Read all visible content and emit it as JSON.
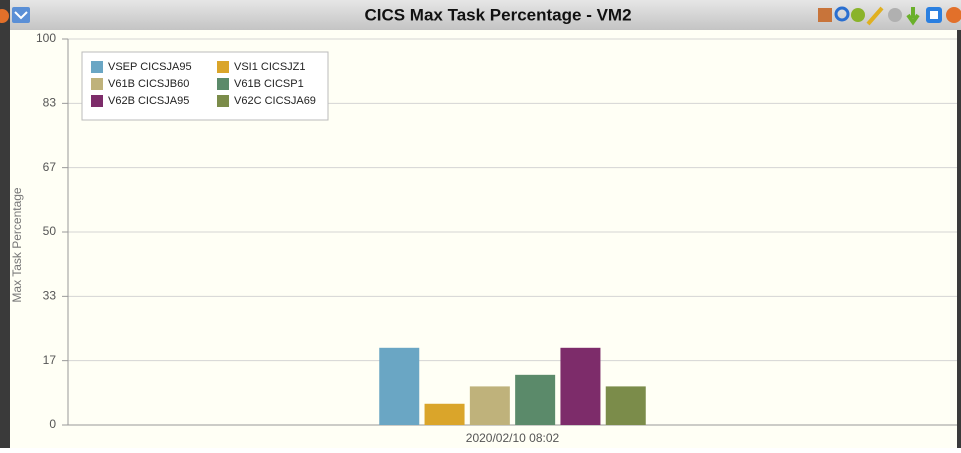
{
  "chart_data": {
    "type": "bar",
    "title": "CICS Max Task Percentage - VM2",
    "y_label": "Max Task Percentage",
    "categories": [
      "2020/02/10 08:02"
    ],
    "series": [
      {
        "name": "VSEP CICSJA95",
        "color": "#6aa6c4",
        "values": [
          20
        ]
      },
      {
        "name": "VSI1 CICSJZ1",
        "color": "#daa52a",
        "values": [
          5.5
        ]
      },
      {
        "name": "V61B CICSJB60",
        "color": "#bfb27b",
        "values": [
          10
        ]
      },
      {
        "name": "V61B CICSP1",
        "color": "#5b8a6a",
        "values": [
          13
        ]
      },
      {
        "name": "V62B CICSJA95",
        "color": "#7d2c6a",
        "values": [
          20
        ]
      },
      {
        "name": "V62C CICSJA69",
        "color": "#7b8c4a",
        "values": [
          10
        ]
      }
    ],
    "ylim": [
      0,
      100
    ],
    "yticks": [
      0,
      {
        "value": 16.67,
        "label": "17"
      },
      {
        "value": 33.33,
        "label": "33"
      },
      50,
      {
        "value": 66.67,
        "label": "67"
      },
      {
        "value": 83.33,
        "label": "83"
      },
      100
    ],
    "grid": true,
    "legend": "upper left"
  }
}
